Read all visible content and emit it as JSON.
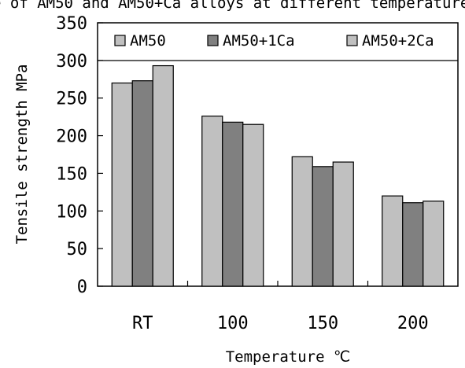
{
  "page": {
    "top_partial_text": "e of AM50 and AM50+Ca alloys at different temperatures"
  },
  "chart_data": {
    "type": "bar",
    "title": "",
    "xlabel": "Temperature ℃",
    "ylabel": "Tensile strength MPa",
    "categories": [
      "RT",
      "100",
      "150",
      "200"
    ],
    "series": [
      {
        "name": "AM50",
        "values": [
          270,
          226,
          172,
          120
        ],
        "color": "#c0c0c0"
      },
      {
        "name": "AM50+1Ca",
        "values": [
          273,
          218,
          159,
          111
        ],
        "color": "#808080"
      },
      {
        "name": "AM50+2Ca",
        "values": [
          293,
          215,
          165,
          113
        ],
        "color": "#c0c0c0"
      }
    ],
    "ylim": [
      0,
      350
    ],
    "yticks": [
      0,
      50,
      100,
      150,
      200,
      250,
      300,
      350
    ],
    "grid": {
      "horizontal": [
        300
      ]
    },
    "legend": {
      "position": "top",
      "inside": true
    }
  }
}
